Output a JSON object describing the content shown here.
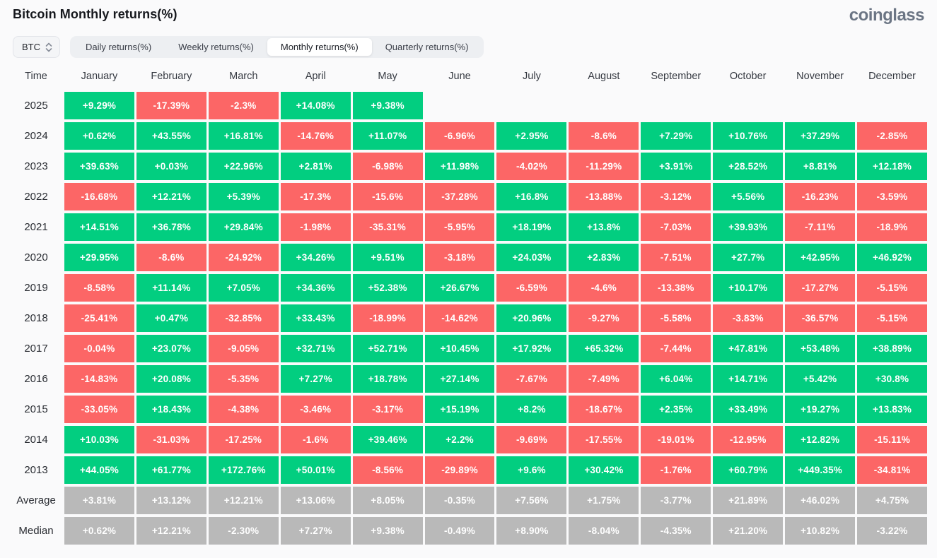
{
  "header": {
    "title": "Bitcoin Monthly returns(%)",
    "brand": "coinglass"
  },
  "controls": {
    "symbol_select": {
      "value": "BTC"
    },
    "tabs": [
      {
        "label": "Daily returns(%)",
        "active": false
      },
      {
        "label": "Weekly returns(%)",
        "active": false
      },
      {
        "label": "Monthly returns(%)",
        "active": true
      },
      {
        "label": "Quarterly returns(%)",
        "active": false
      }
    ]
  },
  "colors": {
    "positive": "#02ce80",
    "negative": "#fc6666",
    "neutral": "#b9b9b9"
  },
  "chart_data": {
    "type": "heatmap",
    "title": "Bitcoin Monthly returns(%)",
    "columns": [
      "Time",
      "January",
      "February",
      "March",
      "April",
      "May",
      "June",
      "July",
      "August",
      "September",
      "October",
      "November",
      "December"
    ],
    "rows": [
      {
        "label": "2025",
        "kind": "year",
        "values": [
          "+9.29%",
          "-17.39%",
          "-2.3%",
          "+14.08%",
          "+9.38%",
          "",
          "",
          "",
          "",
          "",
          "",
          ""
        ]
      },
      {
        "label": "2024",
        "kind": "year",
        "values": [
          "+0.62%",
          "+43.55%",
          "+16.81%",
          "-14.76%",
          "+11.07%",
          "-6.96%",
          "+2.95%",
          "-8.6%",
          "+7.29%",
          "+10.76%",
          "+37.29%",
          "-2.85%"
        ]
      },
      {
        "label": "2023",
        "kind": "year",
        "values": [
          "+39.63%",
          "+0.03%",
          "+22.96%",
          "+2.81%",
          "-6.98%",
          "+11.98%",
          "-4.02%",
          "-11.29%",
          "+3.91%",
          "+28.52%",
          "+8.81%",
          "+12.18%"
        ]
      },
      {
        "label": "2022",
        "kind": "year",
        "values": [
          "-16.68%",
          "+12.21%",
          "+5.39%",
          "-17.3%",
          "-15.6%",
          "-37.28%",
          "+16.8%",
          "-13.88%",
          "-3.12%",
          "+5.56%",
          "-16.23%",
          "-3.59%"
        ]
      },
      {
        "label": "2021",
        "kind": "year",
        "values": [
          "+14.51%",
          "+36.78%",
          "+29.84%",
          "-1.98%",
          "-35.31%",
          "-5.95%",
          "+18.19%",
          "+13.8%",
          "-7.03%",
          "+39.93%",
          "-7.11%",
          "-18.9%"
        ]
      },
      {
        "label": "2020",
        "kind": "year",
        "values": [
          "+29.95%",
          "-8.6%",
          "-24.92%",
          "+34.26%",
          "+9.51%",
          "-3.18%",
          "+24.03%",
          "+2.83%",
          "-7.51%",
          "+27.7%",
          "+42.95%",
          "+46.92%"
        ]
      },
      {
        "label": "2019",
        "kind": "year",
        "values": [
          "-8.58%",
          "+11.14%",
          "+7.05%",
          "+34.36%",
          "+52.38%",
          "+26.67%",
          "-6.59%",
          "-4.6%",
          "-13.38%",
          "+10.17%",
          "-17.27%",
          "-5.15%"
        ]
      },
      {
        "label": "2018",
        "kind": "year",
        "values": [
          "-25.41%",
          "+0.47%",
          "-32.85%",
          "+33.43%",
          "-18.99%",
          "-14.62%",
          "+20.96%",
          "-9.27%",
          "-5.58%",
          "-3.83%",
          "-36.57%",
          "-5.15%"
        ]
      },
      {
        "label": "2017",
        "kind": "year",
        "values": [
          "-0.04%",
          "+23.07%",
          "-9.05%",
          "+32.71%",
          "+52.71%",
          "+10.45%",
          "+17.92%",
          "+65.32%",
          "-7.44%",
          "+47.81%",
          "+53.48%",
          "+38.89%"
        ]
      },
      {
        "label": "2016",
        "kind": "year",
        "values": [
          "-14.83%",
          "+20.08%",
          "-5.35%",
          "+7.27%",
          "+18.78%",
          "+27.14%",
          "-7.67%",
          "-7.49%",
          "+6.04%",
          "+14.71%",
          "+5.42%",
          "+30.8%"
        ]
      },
      {
        "label": "2015",
        "kind": "year",
        "values": [
          "-33.05%",
          "+18.43%",
          "-4.38%",
          "-3.46%",
          "-3.17%",
          "+15.19%",
          "+8.2%",
          "-18.67%",
          "+2.35%",
          "+33.49%",
          "+19.27%",
          "+13.83%"
        ]
      },
      {
        "label": "2014",
        "kind": "year",
        "values": [
          "+10.03%",
          "-31.03%",
          "-17.25%",
          "-1.6%",
          "+39.46%",
          "+2.2%",
          "-9.69%",
          "-17.55%",
          "-19.01%",
          "-12.95%",
          "+12.82%",
          "-15.11%"
        ]
      },
      {
        "label": "2013",
        "kind": "year",
        "values": [
          "+44.05%",
          "+61.77%",
          "+172.76%",
          "+50.01%",
          "-8.56%",
          "-29.89%",
          "+9.6%",
          "+30.42%",
          "-1.76%",
          "+60.79%",
          "+449.35%",
          "-34.81%"
        ]
      },
      {
        "label": "Average",
        "kind": "summary",
        "values": [
          "+3.81%",
          "+13.12%",
          "+12.21%",
          "+13.06%",
          "+8.05%",
          "-0.35%",
          "+7.56%",
          "+1.75%",
          "-3.77%",
          "+21.89%",
          "+46.02%",
          "+4.75%"
        ]
      },
      {
        "label": "Median",
        "kind": "summary",
        "values": [
          "+0.62%",
          "+12.21%",
          "-2.30%",
          "+7.27%",
          "+9.38%",
          "-0.49%",
          "+8.90%",
          "-8.04%",
          "-4.35%",
          "+21.20%",
          "+10.82%",
          "-3.22%"
        ]
      }
    ]
  }
}
